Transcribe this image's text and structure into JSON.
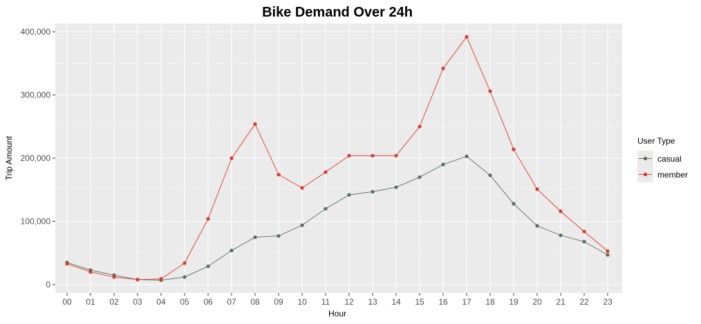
{
  "chart_data": {
    "type": "line",
    "title": "Bike Demand Over 24h",
    "xlabel": "Hour",
    "ylabel": "Trip Amount",
    "categories": [
      "00",
      "01",
      "02",
      "03",
      "04",
      "05",
      "06",
      "07",
      "08",
      "09",
      "10",
      "11",
      "12",
      "13",
      "14",
      "15",
      "16",
      "17",
      "18",
      "19",
      "20",
      "21",
      "22",
      "23"
    ],
    "ylim": [
      -10000,
      400000
    ],
    "yticks": [
      0,
      100000,
      200000,
      300000,
      400000
    ],
    "ytick_labels": [
      "0",
      "100,000",
      "200,000",
      "300,000",
      "400,000"
    ],
    "grid": true,
    "legend": {
      "title": "User Type",
      "position": "right"
    },
    "series": [
      {
        "name": "casual",
        "color": "#5a6e5a",
        "values": [
          35000,
          23000,
          15000,
          8000,
          7000,
          12000,
          29000,
          54000,
          75000,
          77000,
          94000,
          120000,
          142000,
          147000,
          154000,
          170000,
          190000,
          203000,
          173000,
          128000,
          93000,
          78000,
          68000,
          47000
        ]
      },
      {
        "name": "member",
        "color": "#d93a2b",
        "values": [
          33000,
          20000,
          12000,
          8000,
          9000,
          34000,
          104000,
          200000,
          254000,
          174000,
          153000,
          178000,
          204000,
          204000,
          204000,
          250000,
          342000,
          392000,
          306000,
          214000,
          151000,
          116000,
          84000,
          53000
        ]
      }
    ]
  }
}
